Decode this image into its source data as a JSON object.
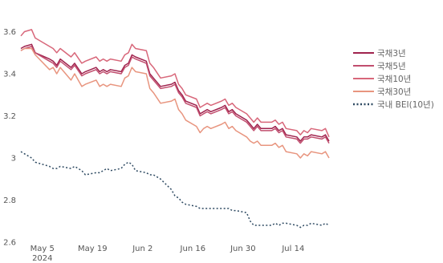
{
  "chart_data": {
    "type": "line",
    "title": "",
    "xlabel": "",
    "ylabel": "",
    "ylim": [
      2.6,
      3.72
    ],
    "y_ticks": [
      "2.6",
      "2.8",
      "3",
      "3.2",
      "3.4",
      "3.6"
    ],
    "y_tick_values": [
      2.6,
      2.8,
      3.0,
      3.2,
      3.4,
      3.6
    ],
    "x_ticks": [
      {
        "label": "May 5",
        "sub": "2024",
        "date": "2024-05-05"
      },
      {
        "label": "May 19",
        "sub": "",
        "date": "2024-05-19"
      },
      {
        "label": "Jun 2",
        "sub": "",
        "date": "2024-06-02"
      },
      {
        "label": "Jun 16",
        "sub": "",
        "date": "2024-06-16"
      },
      {
        "label": "Jun 30",
        "sub": "",
        "date": "2024-06-30"
      },
      {
        "label": "Jul 14",
        "sub": "",
        "date": "2024-07-14"
      }
    ],
    "x_dates": [
      "2024-04-29",
      "2024-04-30",
      "2024-05-02",
      "2024-05-03",
      "2024-05-07",
      "2024-05-08",
      "2024-05-09",
      "2024-05-10",
      "2024-05-13",
      "2024-05-14",
      "2024-05-16",
      "2024-05-17",
      "2024-05-20",
      "2024-05-21",
      "2024-05-22",
      "2024-05-23",
      "2024-05-24",
      "2024-05-27",
      "2024-05-28",
      "2024-05-29",
      "2024-05-30",
      "2024-05-31",
      "2024-06-03",
      "2024-06-04",
      "2024-06-05",
      "2024-06-07",
      "2024-06-10",
      "2024-06-11",
      "2024-06-12",
      "2024-06-13",
      "2024-06-14",
      "2024-06-17",
      "2024-06-18",
      "2024-06-19",
      "2024-06-20",
      "2024-06-21",
      "2024-06-24",
      "2024-06-25",
      "2024-06-26",
      "2024-06-27",
      "2024-06-28",
      "2024-07-01",
      "2024-07-02",
      "2024-07-03",
      "2024-07-04",
      "2024-07-05",
      "2024-07-08",
      "2024-07-09",
      "2024-07-10",
      "2024-07-11",
      "2024-07-12",
      "2024-07-15",
      "2024-07-16",
      "2024-07-17",
      "2024-07-18",
      "2024-07-19",
      "2024-07-22",
      "2024-07-23",
      "2024-07-24"
    ],
    "series": [
      {
        "name": "국채3년",
        "color": "#a0234e",
        "dash": "solid",
        "values": [
          3.52,
          3.53,
          3.54,
          3.5,
          3.47,
          3.46,
          3.44,
          3.47,
          3.43,
          3.45,
          3.4,
          3.41,
          3.43,
          3.41,
          3.42,
          3.41,
          3.42,
          3.41,
          3.44,
          3.45,
          3.49,
          3.48,
          3.46,
          3.4,
          3.38,
          3.34,
          3.35,
          3.36,
          3.32,
          3.3,
          3.27,
          3.25,
          3.21,
          3.22,
          3.23,
          3.22,
          3.24,
          3.25,
          3.22,
          3.23,
          3.21,
          3.18,
          3.16,
          3.14,
          3.16,
          3.14,
          3.14,
          3.15,
          3.13,
          3.14,
          3.11,
          3.1,
          3.08,
          3.1,
          3.1,
          3.11,
          3.1,
          3.11,
          3.08
        ]
      },
      {
        "name": "국채5년",
        "color": "#c14e6e",
        "dash": "solid",
        "values": [
          3.51,
          3.52,
          3.53,
          3.5,
          3.46,
          3.45,
          3.43,
          3.46,
          3.42,
          3.44,
          3.39,
          3.4,
          3.42,
          3.4,
          3.41,
          3.4,
          3.41,
          3.4,
          3.43,
          3.44,
          3.48,
          3.47,
          3.45,
          3.39,
          3.37,
          3.33,
          3.34,
          3.35,
          3.31,
          3.29,
          3.26,
          3.24,
          3.2,
          3.21,
          3.22,
          3.21,
          3.23,
          3.24,
          3.21,
          3.22,
          3.2,
          3.17,
          3.15,
          3.13,
          3.15,
          3.13,
          3.13,
          3.14,
          3.12,
          3.13,
          3.1,
          3.09,
          3.07,
          3.09,
          3.09,
          3.1,
          3.09,
          3.1,
          3.07
        ]
      },
      {
        "name": "국채10년",
        "color": "#d8677a",
        "dash": "solid",
        "values": [
          3.58,
          3.6,
          3.61,
          3.57,
          3.53,
          3.52,
          3.5,
          3.52,
          3.48,
          3.5,
          3.45,
          3.46,
          3.48,
          3.46,
          3.47,
          3.46,
          3.47,
          3.46,
          3.49,
          3.5,
          3.54,
          3.52,
          3.51,
          3.45,
          3.43,
          3.38,
          3.39,
          3.4,
          3.35,
          3.33,
          3.3,
          3.28,
          3.24,
          3.25,
          3.26,
          3.25,
          3.27,
          3.28,
          3.25,
          3.26,
          3.24,
          3.21,
          3.19,
          3.17,
          3.19,
          3.17,
          3.17,
          3.18,
          3.16,
          3.17,
          3.14,
          3.13,
          3.11,
          3.13,
          3.12,
          3.14,
          3.13,
          3.14,
          3.1
        ]
      },
      {
        "name": "국채30년",
        "color": "#e8957f",
        "dash": "solid",
        "values": [
          3.51,
          3.52,
          3.52,
          3.49,
          3.42,
          3.43,
          3.4,
          3.43,
          3.37,
          3.4,
          3.34,
          3.35,
          3.37,
          3.34,
          3.35,
          3.34,
          3.35,
          3.34,
          3.38,
          3.39,
          3.43,
          3.41,
          3.4,
          3.33,
          3.31,
          3.26,
          3.27,
          3.28,
          3.23,
          3.21,
          3.18,
          3.15,
          3.12,
          3.14,
          3.15,
          3.14,
          3.16,
          3.17,
          3.14,
          3.15,
          3.13,
          3.1,
          3.08,
          3.07,
          3.08,
          3.06,
          3.06,
          3.07,
          3.05,
          3.06,
          3.03,
          3.02,
          3.0,
          3.02,
          3.01,
          3.03,
          3.02,
          3.03,
          3.0
        ]
      },
      {
        "name": "국내 BEI(10년)",
        "color": "#2e4a62",
        "dash": "dot",
        "values": [
          3.03,
          3.02,
          3.0,
          2.98,
          2.96,
          2.95,
          2.95,
          2.96,
          2.95,
          2.96,
          2.94,
          2.92,
          2.93,
          2.93,
          2.94,
          2.95,
          2.94,
          2.95,
          2.97,
          2.98,
          2.97,
          2.94,
          2.93,
          2.92,
          2.92,
          2.9,
          2.85,
          2.82,
          2.81,
          2.79,
          2.78,
          2.77,
          2.76,
          2.76,
          2.76,
          2.76,
          2.76,
          2.76,
          2.76,
          2.75,
          2.75,
          2.74,
          2.7,
          2.68,
          2.68,
          2.68,
          2.68,
          2.69,
          2.68,
          2.69,
          2.69,
          2.68,
          2.67,
          2.68,
          2.68,
          2.69,
          2.68,
          2.69,
          2.68
        ]
      }
    ],
    "legend_position": "right",
    "grid": false
  }
}
